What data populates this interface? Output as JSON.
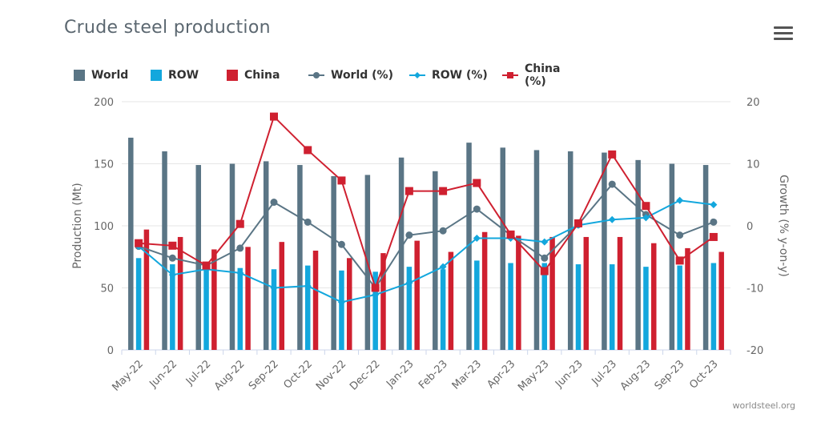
{
  "title": "Crude steel production",
  "credit": "worldsteel.org",
  "menu_icon": "hamburger-menu-icon",
  "colors": {
    "world": "#5a7585",
    "row": "#13a7dd",
    "china": "#cf2030",
    "grid": "#e6e6e6",
    "axis_text": "#666666"
  },
  "legend": [
    {
      "label": "World",
      "kind": "bar",
      "series": "world"
    },
    {
      "label": "ROW",
      "kind": "bar",
      "series": "row"
    },
    {
      "label": "China",
      "kind": "bar",
      "series": "china"
    },
    {
      "label": "World (%)",
      "kind": "line-circle",
      "series": "world"
    },
    {
      "label": "ROW (%)",
      "kind": "line-diamond",
      "series": "row"
    },
    {
      "label": "China (%)",
      "kind": "line-square",
      "series": "china"
    }
  ],
  "chart_data": {
    "type": "bar+line",
    "categories": [
      "May-22",
      "Jun-22",
      "Jul-22",
      "Aug-22",
      "Sep-22",
      "Oct-22",
      "Nov-22",
      "Dec-22",
      "Jan-23",
      "Feb-23",
      "Mar-23",
      "Apr-23",
      "May-23",
      "Jun-23",
      "Jul-23",
      "Aug-23",
      "Sep-23",
      "Oct-23"
    ],
    "ylabel": "Production (Mt)",
    "ylim": [
      0,
      200
    ],
    "yticks": [
      0,
      50,
      100,
      150,
      200
    ],
    "y2label": "Growth (% y-on-y)",
    "y2lim": [
      -20,
      20
    ],
    "y2ticks": [
      -20,
      -10,
      0,
      10,
      20
    ],
    "grid": true,
    "legend_position": "top-left",
    "bar_series": [
      {
        "name": "World",
        "key": "world",
        "values": [
          171,
          160,
          149,
          150,
          152,
          149,
          140,
          141,
          155,
          144,
          167,
          163,
          161,
          160,
          159,
          153,
          150,
          149
        ]
      },
      {
        "name": "ROW",
        "key": "row",
        "values": [
          74,
          69,
          68,
          66,
          65,
          68,
          64,
          63,
          67,
          65,
          72,
          70,
          70,
          69,
          69,
          67,
          68,
          70
        ]
      },
      {
        "name": "China",
        "key": "china",
        "values": [
          97,
          91,
          81,
          83,
          87,
          80,
          74,
          78,
          88,
          79,
          95,
          92,
          91,
          91,
          91,
          86,
          82,
          79
        ]
      }
    ],
    "line_series": [
      {
        "name": "World (%)",
        "key": "world",
        "marker": "circle",
        "values": [
          -3.3,
          -5.2,
          -6.4,
          -3.6,
          3.8,
          0.6,
          -3.0,
          -10.0,
          -1.5,
          -0.8,
          2.7,
          -1.5,
          -5.2,
          0.2,
          6.7,
          1.8,
          -1.5,
          0.6
        ]
      },
      {
        "name": "ROW (%)",
        "key": "row",
        "marker": "diamond",
        "values": [
          -3.3,
          -7.9,
          -7.0,
          -7.6,
          -10.0,
          -9.7,
          -12.3,
          -11.1,
          -9.2,
          -6.6,
          -2.0,
          -2.0,
          -2.6,
          0.1,
          1.0,
          1.3,
          4.1,
          3.4
        ]
      },
      {
        "name": "China (%)",
        "key": "china",
        "marker": "square",
        "values": [
          -2.8,
          -3.2,
          -6.4,
          0.3,
          17.6,
          12.2,
          7.3,
          -10.0,
          5.6,
          5.6,
          6.9,
          -1.4,
          -7.3,
          0.4,
          11.5,
          3.2,
          -5.6,
          -1.8
        ]
      }
    ]
  }
}
